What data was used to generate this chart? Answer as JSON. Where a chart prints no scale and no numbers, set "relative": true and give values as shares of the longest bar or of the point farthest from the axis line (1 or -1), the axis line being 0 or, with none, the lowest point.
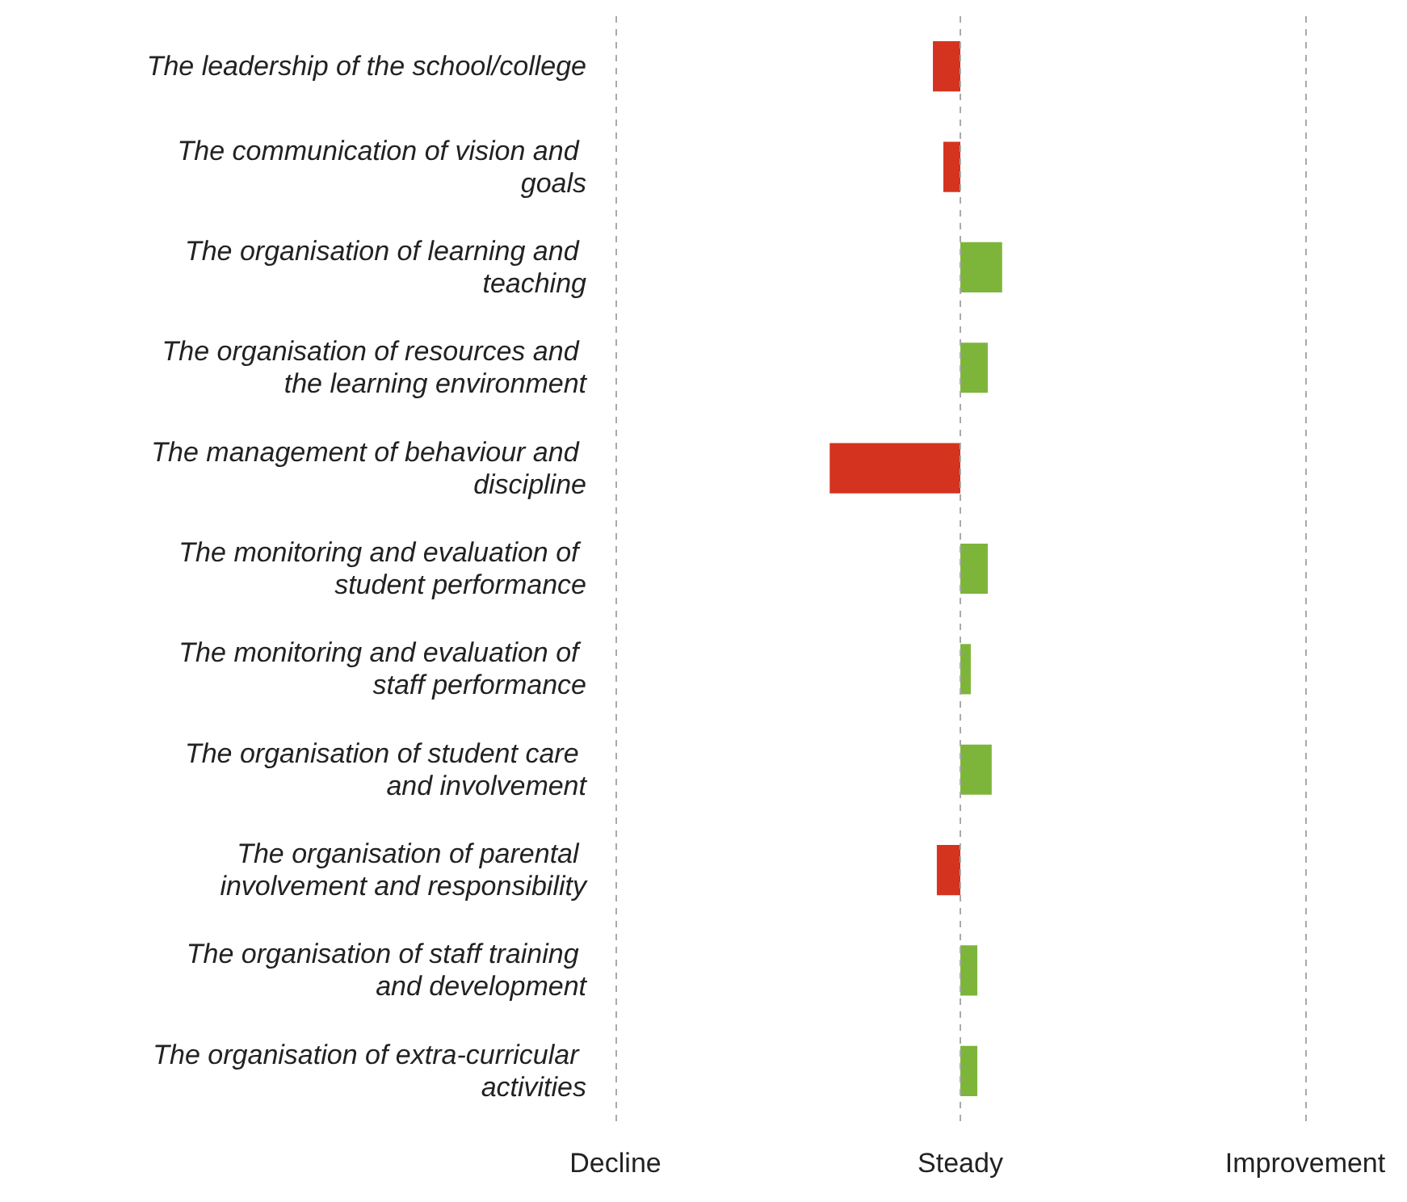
{
  "chart_data": {
    "type": "bar",
    "orientation": "horizontal",
    "relative": true,
    "categories": [
      "The leadership of the school/college",
      "The communication of vision and goals",
      "The organisation of learning and teaching",
      "The organisation of resources and the learning environment",
      "The management of behaviour and discipline",
      "The monitoring and evaluation of student performance",
      "The monitoring and evaluation of staff performance",
      "The organisation of student care and involvement",
      "The organisation of parental involvement and responsibility",
      "The organisation of staff training and development",
      "The organisation of extra-curricular activities"
    ],
    "values": [
      -0.21,
      -0.13,
      0.32,
      0.21,
      -1,
      0.21,
      0.08,
      0.24,
      -0.18,
      0.13,
      0.13
    ],
    "colors": [
      "#d4341f",
      "#d4341f",
      "#7db53a",
      "#7db53a",
      "#d4341f",
      "#7db53a",
      "#7db53a",
      "#7db53a",
      "#d4341f",
      "#7db53a",
      "#7db53a"
    ],
    "ref_lines": [
      {
        "axis": "x",
        "value": -2.64,
        "label": "Decline",
        "color": "#aaaaaa",
        "line_style": "dashed"
      },
      {
        "axis": "x",
        "value": 0,
        "label": "Steady",
        "color": "#aaaaaa",
        "line_style": "dashed"
      },
      {
        "axis": "x",
        "value": 2.64,
        "label": "Improvement",
        "color": "#aaaaaa",
        "line_style": "dashed"
      }
    ]
  }
}
